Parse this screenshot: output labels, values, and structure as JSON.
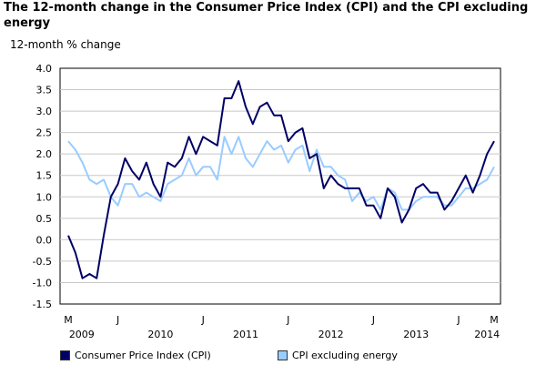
{
  "chart_data": {
    "type": "line",
    "title": "The 12-month change in the Consumer Price Index (CPI) and the CPI excluding energy",
    "ylabel": "12-month % change",
    "xlabel": "",
    "ylim": [
      -1.5,
      4.0
    ],
    "yticks": [
      "4.0",
      "3.5",
      "3.0",
      "2.5",
      "2.0",
      "1.5",
      "1.0",
      "0.5",
      "0.0",
      "-0.5",
      "-1.0",
      "-1.5"
    ],
    "x_month_ticks": [
      {
        "label": "M",
        "index": 0
      },
      {
        "label": "J",
        "index": 7
      },
      {
        "label": "J",
        "index": 19
      },
      {
        "label": "J",
        "index": 31
      },
      {
        "label": "J",
        "index": 43
      },
      {
        "label": "J",
        "index": 55
      },
      {
        "label": "M",
        "index": 60
      }
    ],
    "x_year_labels": [
      {
        "label": "2009",
        "index": 1.9
      },
      {
        "label": "2010",
        "index": 13
      },
      {
        "label": "2011",
        "index": 25
      },
      {
        "label": "2012",
        "index": 37
      },
      {
        "label": "2013",
        "index": 49
      },
      {
        "label": "2014",
        "index": 59
      }
    ],
    "x_start": "2009-03",
    "x_end": "2014-03",
    "grid": true,
    "legend_position": "bottom",
    "series": [
      {
        "name": "Consumer Price Index (CPI)",
        "color": "#000066",
        "values": [
          0.1,
          -0.3,
          -0.9,
          -0.8,
          -0.9,
          0.1,
          1.0,
          1.3,
          1.9,
          1.6,
          1.4,
          1.8,
          1.3,
          1.0,
          1.8,
          1.7,
          1.9,
          2.4,
          2.0,
          2.4,
          2.3,
          2.2,
          3.3,
          3.3,
          3.7,
          3.1,
          2.7,
          3.1,
          3.2,
          2.9,
          2.9,
          2.3,
          2.5,
          2.6,
          1.9,
          2.0,
          1.2,
          1.5,
          1.3,
          1.2,
          1.2,
          1.2,
          0.8,
          0.8,
          0.5,
          1.2,
          1.0,
          0.4,
          0.7,
          1.2,
          1.3,
          1.1,
          1.1,
          0.7,
          0.9,
          1.2,
          1.5,
          1.1,
          1.5,
          2.0,
          2.3
        ]
      },
      {
        "name": "CPI excluding energy",
        "color": "#99ccff",
        "values": [
          2.3,
          2.1,
          1.8,
          1.4,
          1.3,
          1.4,
          1.0,
          0.8,
          1.3,
          1.3,
          1.0,
          1.1,
          1.0,
          0.9,
          1.3,
          1.4,
          1.5,
          1.9,
          1.5,
          1.7,
          1.7,
          1.4,
          2.4,
          2.0,
          2.4,
          1.9,
          1.7,
          2.0,
          2.3,
          2.1,
          2.2,
          1.8,
          2.1,
          2.2,
          1.6,
          2.1,
          1.7,
          1.7,
          1.5,
          1.4,
          0.9,
          1.1,
          0.9,
          1.0,
          0.7,
          1.2,
          1.1,
          0.7,
          0.7,
          0.9,
          1.0,
          1.0,
          1.0,
          0.8,
          0.8,
          1.0,
          1.2,
          1.2,
          1.3,
          1.4,
          1.7
        ]
      }
    ]
  }
}
